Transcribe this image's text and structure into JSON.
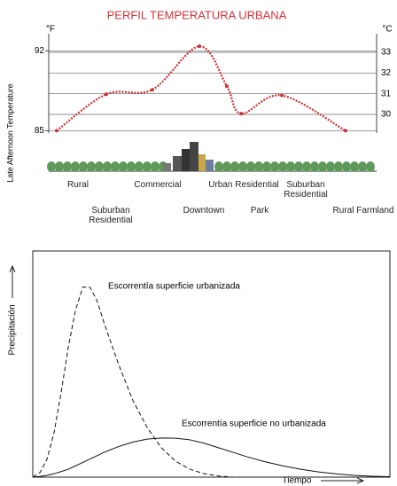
{
  "chart_data": [
    {
      "type": "line",
      "title": "PERFIL TEMPERATURA URBANA",
      "y_label": "Late Afternoon Temperature",
      "y_unit": "°F",
      "y2_unit": "°C",
      "categories": [
        "Rural",
        "Suburban Residential",
        "Commercial",
        "Downtown",
        "Urban Residential",
        "Park",
        "Suburban Residential",
        "Rural Farmland"
      ],
      "series": [
        {
          "color": "#c8323a",
          "values": [
            85.0,
            88.2,
            88.6,
            92.4,
            88.9,
            86.5,
            88.1,
            85.0
          ]
        }
      ],
      "ylim": [
        84.8,
        93.5
      ],
      "yticks": [
        85,
        92
      ],
      "y2lim": [
        29.1,
        33.9
      ],
      "y2ticks": [
        30,
        31,
        32,
        33
      ],
      "grid": true
    },
    {
      "type": "hydrograph",
      "x_label": "Tiempo",
      "y_label": "Precipitación",
      "x": [
        0,
        2,
        4,
        6,
        8,
        10,
        12,
        14,
        16,
        18,
        20,
        24,
        28,
        32,
        36,
        40,
        44,
        48,
        52,
        56,
        60,
        65,
        70,
        75,
        80,
        85,
        90,
        95,
        100
      ],
      "series": [
        {
          "name": "Escorrentía superficie urbanizada",
          "color": "#111111",
          "style": "dashed",
          "values": [
            0,
            2,
            8,
            20,
            38,
            58,
            74,
            84,
            84,
            78,
            68,
            50,
            34,
            22,
            13,
            7,
            3.5,
            1.5,
            0.5,
            0,
            0,
            0,
            0,
            0,
            0,
            0,
            0,
            0,
            0
          ]
        },
        {
          "name": "Escorrentía superficie no urbanizada",
          "color": "#111111",
          "style": "solid",
          "values": [
            0,
            0.3,
            0.8,
            1.5,
            2.5,
            3.5,
            5,
            6.5,
            8,
            9.5,
            11,
            13.5,
            15.5,
            16.8,
            17.3,
            17.2,
            16.5,
            15,
            13,
            11,
            9,
            6.8,
            5,
            3.5,
            2.3,
            1.4,
            0.8,
            0.4,
            0.2
          ]
        }
      ],
      "xlim": [
        0,
        100
      ],
      "ylim": [
        0,
        100
      ]
    }
  ]
}
